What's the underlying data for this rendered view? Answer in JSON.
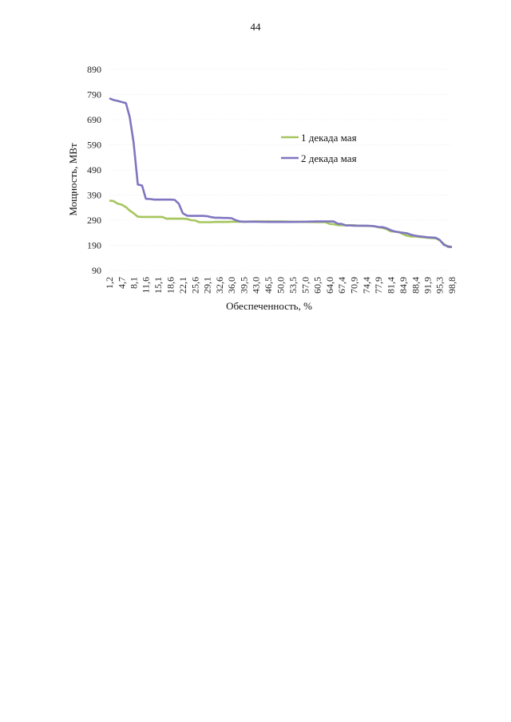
{
  "page": {
    "number": "44"
  },
  "chart_data": {
    "type": "line",
    "xlabel": "Обеспеченность, %",
    "ylabel": "Мощность, МВт",
    "ylim": [
      90,
      890
    ],
    "yticks": [
      90,
      190,
      290,
      390,
      490,
      590,
      690,
      790,
      890
    ],
    "grid": false,
    "legend_position": "top-right",
    "x_tick_labels": [
      "1,2",
      "4,7",
      "8,1",
      "11,6",
      "15,1",
      "18,6",
      "22,1",
      "25,6",
      "29,1",
      "32,6",
      "36,0",
      "39,5",
      "43,0",
      "46,5",
      "50,0",
      "53,5",
      "57,0",
      "60,5",
      "64,0",
      "67,4",
      "70,9",
      "74,4",
      "77,9",
      "81,4",
      "84,9",
      "88,4",
      "91,9",
      "95,3",
      "98,8"
    ],
    "x_tick_values": [
      1.2,
      4.7,
      8.1,
      11.6,
      15.1,
      18.6,
      22.1,
      25.6,
      29.1,
      32.6,
      36.0,
      39.5,
      43.0,
      46.5,
      50.0,
      53.5,
      57.0,
      60.5,
      64.0,
      67.4,
      70.9,
      74.4,
      77.9,
      81.4,
      84.9,
      88.4,
      91.9,
      95.3,
      98.8
    ],
    "xlim": [
      1.2,
      98.8
    ],
    "series": [
      {
        "name": "1 декада мая",
        "color": "#a6c65e",
        "x": [
          1.2,
          2.4,
          3.5,
          4.7,
          5.9,
          7.0,
          8.1,
          9.3,
          10.5,
          11.6,
          12.8,
          14.0,
          15.1,
          16.3,
          17.4,
          18.6,
          19.8,
          21.0,
          22.1,
          23.3,
          24.4,
          25.6,
          26.8,
          27.9,
          29.1,
          30.2,
          31.4,
          32.6,
          33.7,
          34.9,
          36.0,
          37.2,
          38.4,
          39.5,
          41.8,
          43.0,
          46.5,
          50.0,
          53.5,
          57.0,
          60.5,
          62.8,
          64.0,
          65.1,
          66.3,
          67.4,
          68.6,
          69.8,
          70.9,
          72.1,
          73.3,
          74.4,
          75.6,
          76.7,
          77.9,
          79.1,
          80.2,
          81.4,
          82.6,
          83.7,
          84.9,
          86.0,
          87.2,
          88.4,
          89.5,
          90.7,
          91.9,
          93.0,
          94.2,
          95.3,
          96.5,
          97.7,
          98.8
        ],
        "values": [
          368,
          366,
          356,
          352,
          342,
          328,
          318,
          304,
          303,
          303,
          303,
          303,
          303,
          303,
          296,
          296,
          296,
          296,
          296,
          295,
          290,
          289,
          282,
          282,
          282,
          282,
          283,
          283,
          283,
          283,
          284,
          284,
          284,
          284,
          285,
          285,
          285,
          285,
          284,
          283,
          282,
          282,
          275,
          274,
          270,
          270,
          270,
          270,
          270,
          268,
          268,
          267,
          267,
          266,
          262,
          259,
          254,
          246,
          244,
          243,
          234,
          228,
          225,
          225,
          223,
          222,
          220,
          219,
          218,
          210,
          196,
          183,
          183
        ]
      },
      {
        "name": "2 декада мая",
        "color": "#7f76bf",
        "x": [
          1.2,
          2.4,
          3.5,
          4.7,
          5.9,
          7.0,
          8.1,
          9.3,
          10.5,
          11.6,
          12.8,
          14.0,
          15.1,
          16.3,
          17.4,
          18.6,
          19.8,
          21.0,
          22.1,
          23.3,
          24.4,
          25.6,
          26.8,
          27.9,
          29.1,
          30.2,
          31.4,
          32.6,
          33.7,
          34.9,
          36.0,
          37.2,
          38.4,
          39.5,
          41.8,
          43.0,
          46.5,
          50.0,
          53.5,
          57.0,
          60.5,
          62.8,
          64.0,
          65.1,
          66.3,
          67.4,
          68.6,
          69.8,
          70.9,
          72.1,
          73.3,
          74.4,
          75.6,
          76.7,
          77.9,
          79.1,
          80.2,
          81.4,
          82.6,
          83.7,
          84.9,
          86.0,
          87.2,
          88.4,
          89.5,
          90.7,
          91.9,
          93.0,
          94.2,
          95.3,
          96.5,
          97.7,
          98.8
        ],
        "values": [
          775,
          768,
          765,
          760,
          756,
          700,
          600,
          432,
          428,
          375,
          374,
          372,
          372,
          372,
          372,
          372,
          371,
          355,
          318,
          308,
          307,
          307,
          307,
          307,
          306,
          302,
          300,
          300,
          299,
          299,
          298,
          290,
          285,
          284,
          284,
          284,
          283,
          283,
          283,
          284,
          285,
          285,
          285,
          285,
          276,
          275,
          269,
          269,
          268,
          268,
          268,
          268,
          267,
          266,
          263,
          262,
          258,
          250,
          245,
          242,
          240,
          238,
          232,
          228,
          226,
          224,
          222,
          221,
          220,
          212,
          192,
          186,
          183
        ]
      }
    ]
  }
}
